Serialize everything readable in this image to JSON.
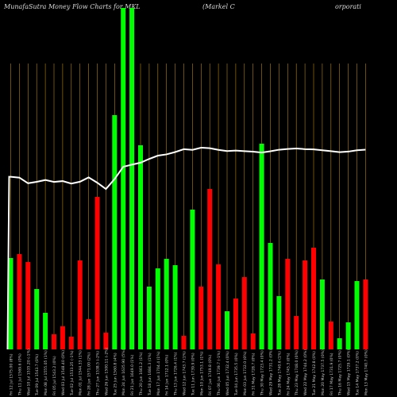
{
  "header": {
    "title_left": "MunafaSutra  Money Flow  Charts for MKL",
    "title_mid": "(Markel C",
    "title_right": "orporati"
  },
  "chart_data": {
    "type": "bar",
    "title": "MunafaSutra  Money Flow  Charts for MKL",
    "xlabel": "",
    "ylabel": "",
    "grid": true,
    "colors": {
      "up": "#00ff00",
      "down": "#ff0000",
      "line": "#ffffff",
      "grid": "#b8860b"
    },
    "categories": [
      "Fri 12 Jul 1575.00 (8%)",
      "Thu 11 Jul 1569.6 (0%)",
      "Wed 10 Jul 1535.20 (-1%)",
      "Tue 09 Jul 1543.7 (0%)",
      "Mon 08 Jul 1555.05 (1%)",
      "Fri 05 Jul 1543.2 (0%)",
      "Wed 03 Jul 1548.40 (0%)",
      "Tue 02 Jul 1533.25 (-1%)",
      "Mon 01 Jul 1544.33 (1%)",
      "Fri 28 Jun 1571.00 (2%)",
      "Thu 27 Jun 1538.5 (-2%)",
      "Wed 26 Jun 1500.11 (-2%)",
      "Tue 25 Jun 1560.8 (4%)",
      "Mon 24 Jun 1635.90 (5%)",
      "Fri 21 Jun 1649.0 (1%)",
      "Thu 20 Jun 1661.2 (1%)",
      "Tue 18 Jun 1684.3 (1%)",
      "Mon 17 Jun 1704.4 (1%)",
      "Fri 14 Jun 1712.1 (0%)",
      "Thu 13 Jun 1726.4 (1%)",
      "Wed 12 Jun 1743.7 (1%)",
      "Tue 11 Jun 1739.9 (0%)",
      "Mon 10 Jun 1753.1 (1%)",
      "Fri 07 Jun 1749.8 (0%)",
      "Thu 06 Jun 1739.7 (-1%)",
      "Wed 05 Jun 1732.4 (0%)",
      "Tue 04 Jun 1735.5 (0%)",
      "Mon 03 Jun 1732.0 (0%)",
      "Fri 31 May 1728.7 (0%)",
      "Thu 30 May 1723.4 (0%)",
      "Wed 29 May 1731.2 (0%)",
      "Tue 28 May 1740.6 (1%)",
      "Fri 24 May 1745.3 (0%)",
      "Thu 23 May 1748.0 (0%)",
      "Wed 22 May 1744.2 (0%)",
      "Tue 21 May 1742.8 (0%)",
      "Mon 20 May 1737.5 (0%)",
      "Fri 17 May 1731.9 (0%)",
      "Thu 16 May 1725.7 (0%)",
      "Wed 15 May 1729.1 (0%)",
      "Tue 14 May 1737.2 (0%)",
      "Mon 13 May 1740.7 (0%)"
    ],
    "series": [
      {
        "values": [
          115,
          120,
          110,
          76,
          46,
          19,
          29,
          16,
          112,
          38,
          192,
          21,
          295,
          430,
          430,
          257,
          79,
          102,
          114,
          106,
          17,
          176,
          79,
          202,
          107,
          48,
          64,
          91,
          20,
          259,
          134,
          67,
          114,
          42,
          112,
          128,
          88,
          35,
          14,
          34,
          86,
          88
        ],
        "directions": [
          "up",
          "down",
          "down",
          "up",
          "up",
          "down",
          "down",
          "down",
          "down",
          "down",
          "down",
          "down",
          "up",
          "up",
          "up",
          "up",
          "up",
          "up",
          "up",
          "up",
          "down",
          "up",
          "down",
          "down",
          "down",
          "up",
          "down",
          "down",
          "down",
          "up",
          "up",
          "up",
          "down",
          "down",
          "down",
          "down",
          "up",
          "down",
          "up",
          "up",
          "up",
          "down"
        ]
      },
      {
        "values": [
          1575.0,
          1569.6,
          1535.2,
          1543.7,
          1555.05,
          1543.2,
          1548.4,
          1533.25,
          1544.33,
          1571.0,
          1538.5,
          1500.11,
          1560.8,
          1635.9,
          1649.0,
          1661.2,
          1684.3,
          1704.4,
          1712.1,
          1726.4,
          1743.7,
          1739.9,
          1753.1,
          1749.8,
          1739.7,
          1732.4,
          1735.5,
          1732.0,
          1728.7,
          1723.4,
          1731.2,
          1740.6,
          1745.3,
          1748.0,
          1744.2,
          1742.8,
          1737.5,
          1731.9,
          1725.7,
          1729.1,
          1737.2,
          1740.7
        ]
      }
    ],
    "ylim": [
      0,
      430
    ]
  }
}
